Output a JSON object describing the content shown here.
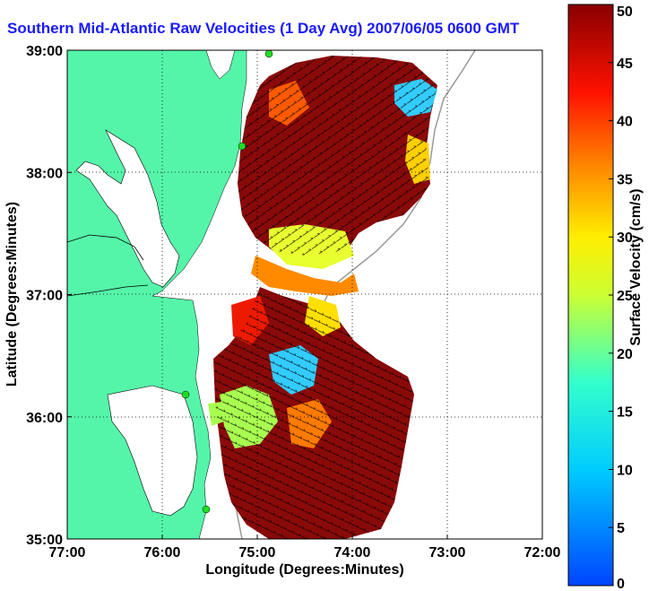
{
  "title": "Southern Mid-Atlantic Raw Velocities (1 Day Avg) 2007/06/05 0600 GMT",
  "chart_data": {
    "type": "map",
    "xlabel": "Longitude (Degrees:Minutes)",
    "ylabel": "Latitude (Degrees:Minutes)",
    "x_ticks": [
      "77:00",
      "76:00",
      "75:00",
      "74:00",
      "73:00",
      "72:00"
    ],
    "y_ticks": [
      "39:00",
      "38:00",
      "37:00",
      "36:00",
      "35:00"
    ],
    "lon_range": [
      -77,
      -72
    ],
    "lat_range": [
      35,
      39
    ],
    "grid": "dotted",
    "colorbar": {
      "label": "Surface Velocity (cm/s)",
      "min": 0,
      "max": 50,
      "ticks": [
        0,
        5,
        10,
        15,
        20,
        25,
        30,
        35,
        40,
        45,
        50
      ],
      "colormap": "jet"
    },
    "colors": {
      "land": "#55f5a9",
      "title": "#1a1aff",
      "water": "#ffffff"
    }
  }
}
